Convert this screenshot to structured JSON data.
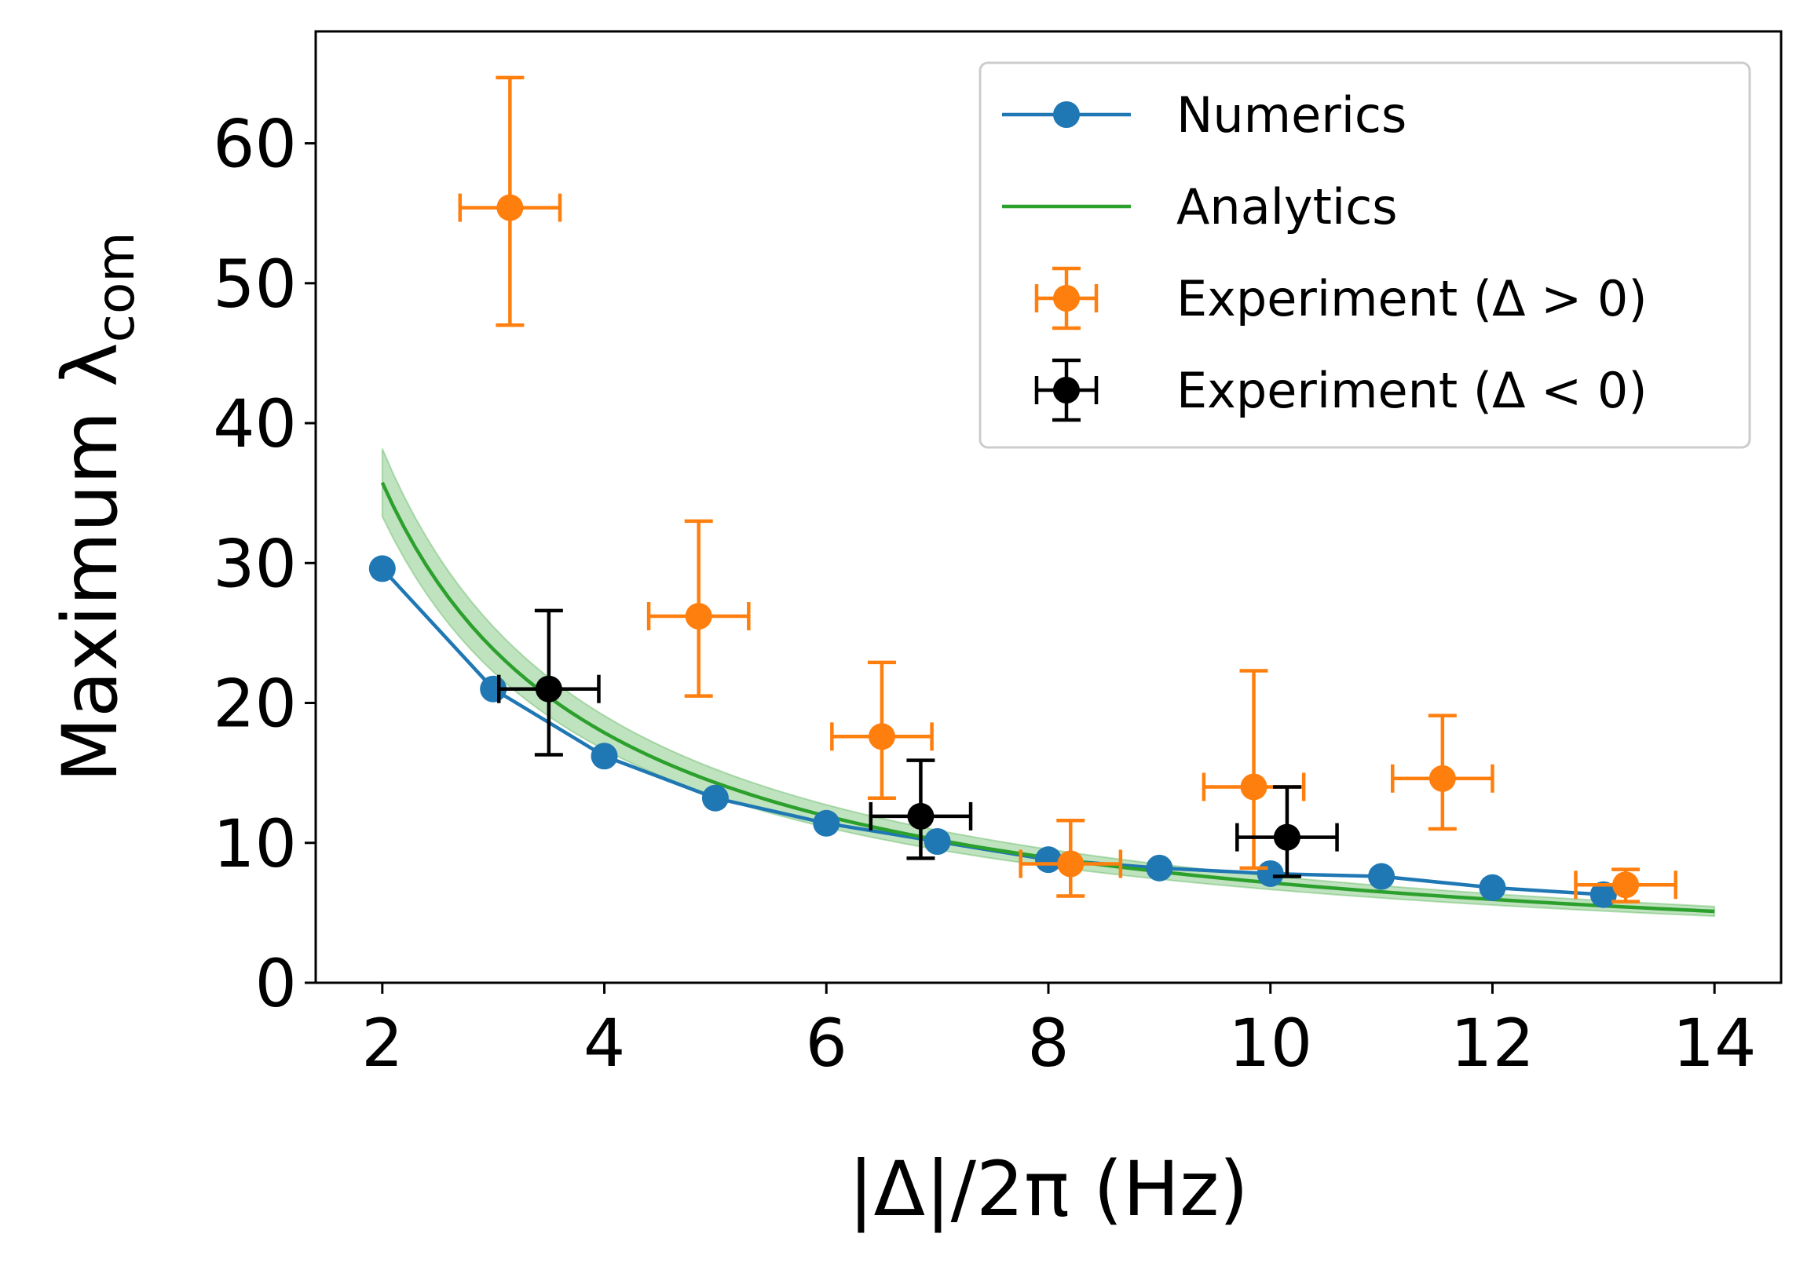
{
  "chart_data": {
    "type": "scatter",
    "xlabel": "|Δ|/2π (Hz)",
    "ylabel_main": "Maximum λ",
    "ylabel_sub": "com",
    "xlim": [
      1.4,
      14.6
    ],
    "ylim": [
      0,
      68
    ],
    "xticks": [
      2,
      4,
      6,
      8,
      10,
      12,
      14
    ],
    "yticks": [
      0,
      10,
      20,
      30,
      40,
      50,
      60
    ],
    "grid": false,
    "legend_position": "top-right",
    "series": [
      {
        "name": "Numerics",
        "kind": "line-marker",
        "color": "#1f77b4",
        "x": [
          2,
          3,
          4,
          5,
          6,
          7,
          8,
          9,
          10,
          11,
          12,
          13
        ],
        "y": [
          29.6,
          21.0,
          16.2,
          13.2,
          11.4,
          10.1,
          8.8,
          8.2,
          7.8,
          7.6,
          6.8,
          6.3
        ]
      },
      {
        "name": "Analytics",
        "kind": "line-band",
        "color": "#2ca02c",
        "formula_k": 71.5,
        "band_fraction": 0.068,
        "x_range": [
          2,
          14
        ]
      },
      {
        "name": "Experiment (Δ > 0)",
        "kind": "errorbar",
        "color": "#ff7f0e",
        "points": [
          {
            "x": 3.15,
            "y": 55.4,
            "xerr": 0.45,
            "yerr_low": 8.4,
            "yerr_high": 9.3
          },
          {
            "x": 4.85,
            "y": 26.2,
            "xerr": 0.45,
            "yerr_low": 5.7,
            "yerr_high": 6.8
          },
          {
            "x": 6.5,
            "y": 17.6,
            "xerr": 0.45,
            "yerr_low": 4.4,
            "yerr_high": 5.3
          },
          {
            "x": 8.2,
            "y": 8.5,
            "xerr": 0.45,
            "yerr_low": 2.3,
            "yerr_high": 3.1
          },
          {
            "x": 9.85,
            "y": 14.0,
            "xerr": 0.45,
            "yerr_low": 5.8,
            "yerr_high": 8.3
          },
          {
            "x": 11.55,
            "y": 14.6,
            "xerr": 0.45,
            "yerr_low": 3.6,
            "yerr_high": 4.5
          },
          {
            "x": 13.2,
            "y": 7.0,
            "xerr": 0.45,
            "yerr_low": 1.2,
            "yerr_high": 1.1
          }
        ]
      },
      {
        "name": "Experiment (Δ < 0)",
        "kind": "errorbar",
        "color": "#000000",
        "points": [
          {
            "x": 3.5,
            "y": 21.0,
            "xerr": 0.45,
            "yerr_low": 4.7,
            "yerr_high": 5.6
          },
          {
            "x": 6.85,
            "y": 11.9,
            "xerr": 0.45,
            "yerr_low": 3.0,
            "yerr_high": 4.0
          },
          {
            "x": 10.15,
            "y": 10.4,
            "xerr": 0.45,
            "yerr_low": 2.8,
            "yerr_high": 3.6
          }
        ]
      }
    ],
    "legend": [
      {
        "label": "Numerics",
        "symbol": "line-marker",
        "color": "#1f77b4"
      },
      {
        "label": "Analytics",
        "symbol": "line",
        "color": "#2ca02c"
      },
      {
        "label": "Experiment (Δ > 0)",
        "symbol": "errorbar",
        "color": "#ff7f0e"
      },
      {
        "label": "Experiment (Δ < 0)",
        "symbol": "errorbar",
        "color": "#000000"
      }
    ]
  }
}
